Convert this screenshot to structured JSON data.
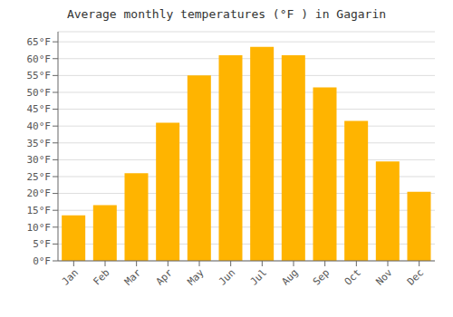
{
  "chart_data": {
    "type": "bar",
    "title": "Average monthly temperatures (°F ) in Gagarin",
    "categories": [
      "Jan",
      "Feb",
      "Mar",
      "Apr",
      "May",
      "Jun",
      "Jul",
      "Aug",
      "Sep",
      "Oct",
      "Nov",
      "Dec"
    ],
    "values": [
      13.5,
      16.5,
      26,
      41,
      55,
      61,
      63.5,
      61,
      51.5,
      41.5,
      29.5,
      20.5
    ],
    "color": "#FFB400",
    "ylim": [
      0,
      68
    ],
    "yticks": [
      {
        "value": 0,
        "label": "0°F"
      },
      {
        "value": 5,
        "label": "5°F"
      },
      {
        "value": 10,
        "label": "10°F"
      },
      {
        "value": 15,
        "label": "15°F"
      },
      {
        "value": 20,
        "label": "20°F"
      },
      {
        "value": 25,
        "label": "25°F"
      },
      {
        "value": 30,
        "label": "30°F"
      },
      {
        "value": 35,
        "label": "35°F"
      },
      {
        "value": 40,
        "label": "40°F"
      },
      {
        "value": 45,
        "label": "45°F"
      },
      {
        "value": 50,
        "label": "50°F"
      },
      {
        "value": 55,
        "label": "55°F"
      },
      {
        "value": 60,
        "label": "60°F"
      },
      {
        "value": 65,
        "label": "65°F"
      }
    ],
    "grid": true
  }
}
